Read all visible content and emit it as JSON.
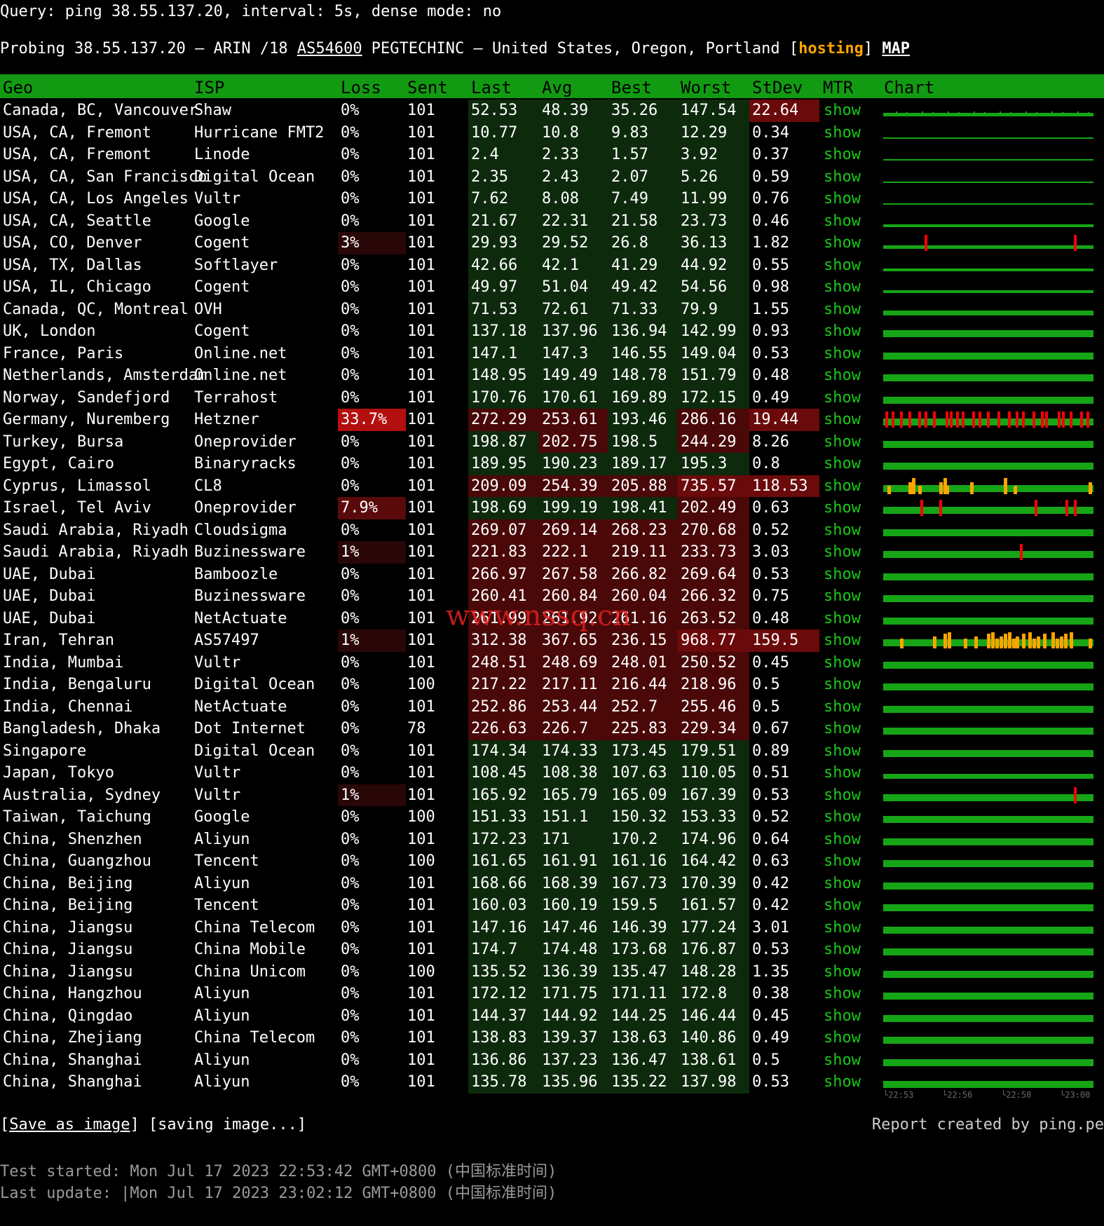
{
  "query": {
    "label": "Query:",
    "text": "ping 38.55.137.20, interval: 5s, dense mode: no"
  },
  "probe": {
    "prefix": "Probing 38.55.137.20 – ARIN /18 ",
    "asn": "AS54600",
    "middle": " PEGTECHINC – United States, Oregon, Portland [",
    "tag": "hosting",
    "close": "] ",
    "map": "MAP"
  },
  "columns": {
    "geo": "Geo",
    "isp": "ISP",
    "loss": "Loss",
    "sent": "Sent",
    "last": "Last",
    "avg": "Avg",
    "best": "Best",
    "worst": "Worst",
    "stdev": "StDev",
    "mtr": "MTR",
    "chart": "Chart"
  },
  "rows": [
    {
      "geo": "Canada, BC, Vancouver",
      "isp": "Shaw",
      "loss": "0%",
      "sent": "101",
      "last": "52.53",
      "avg": "48.39",
      "best": "35.26",
      "worst": "147.54",
      "stdev": "22.64",
      "mtr": "show",
      "chart": "jitter"
    },
    {
      "geo": "USA, CA, Fremont",
      "isp": "Hurricane FMT2",
      "loss": "0%",
      "sent": "101",
      "last": "10.77",
      "avg": "10.8",
      "best": "9.83",
      "worst": "12.29",
      "stdev": "0.34",
      "mtr": "show",
      "chart": "flat-thin"
    },
    {
      "geo": "USA, CA, Fremont",
      "isp": "Linode",
      "loss": "0%",
      "sent": "101",
      "last": "2.4",
      "avg": "2.33",
      "best": "1.57",
      "worst": "3.92",
      "stdev": "0.37",
      "mtr": "show",
      "chart": "flat-thin"
    },
    {
      "geo": "USA, CA, San Francisco",
      "isp": "Digital Ocean",
      "loss": "0%",
      "sent": "101",
      "last": "2.35",
      "avg": "2.43",
      "best": "2.07",
      "worst": "5.26",
      "stdev": "0.59",
      "mtr": "show",
      "chart": "flat-thin"
    },
    {
      "geo": "USA, CA, Los Angeles",
      "isp": "Vultr",
      "loss": "0%",
      "sent": "101",
      "last": "7.62",
      "avg": "8.08",
      "best": "7.49",
      "worst": "11.99",
      "stdev": "0.76",
      "mtr": "show",
      "chart": "flat-thin"
    },
    {
      "geo": "USA, CA, Seattle",
      "isp": "Google",
      "loss": "0%",
      "sent": "101",
      "last": "21.67",
      "avg": "22.31",
      "best": "21.58",
      "worst": "23.73",
      "stdev": "0.46",
      "mtr": "show",
      "chart": "flat-small"
    },
    {
      "geo": "USA, CO, Denver",
      "isp": "Cogent",
      "loss": "3%",
      "sent": "101",
      "last": "29.93",
      "avg": "29.52",
      "best": "26.8",
      "worst": "36.13",
      "stdev": "1.82",
      "mtr": "show",
      "chart": "denver"
    },
    {
      "geo": "USA, TX, Dallas",
      "isp": "Softlayer",
      "loss": "0%",
      "sent": "101",
      "last": "42.66",
      "avg": "42.1",
      "best": "41.29",
      "worst": "44.92",
      "stdev": "0.55",
      "mtr": "show",
      "chart": "flat-small"
    },
    {
      "geo": "USA, IL, Chicago",
      "isp": "Cogent",
      "loss": "0%",
      "sent": "101",
      "last": "49.97",
      "avg": "51.04",
      "best": "49.42",
      "worst": "54.56",
      "stdev": "0.98",
      "mtr": "show",
      "chart": "flat-small"
    },
    {
      "geo": "Canada, QC, Montreal",
      "isp": "OVH",
      "loss": "0%",
      "sent": "101",
      "last": "71.53",
      "avg": "72.61",
      "best": "71.33",
      "worst": "79.9",
      "stdev": "1.55",
      "mtr": "show",
      "chart": "flat-mid"
    },
    {
      "geo": "UK, London",
      "isp": "Cogent",
      "loss": "0%",
      "sent": "101",
      "last": "137.18",
      "avg": "137.96",
      "best": "136.94",
      "worst": "142.99",
      "stdev": "0.93",
      "mtr": "show",
      "chart": "flat"
    },
    {
      "geo": "France, Paris",
      "isp": "Online.net",
      "loss": "0%",
      "sent": "101",
      "last": "147.1",
      "avg": "147.3",
      "best": "146.55",
      "worst": "149.04",
      "stdev": "0.53",
      "mtr": "show",
      "chart": "flat"
    },
    {
      "geo": "Netherlands, Amsterdam",
      "isp": "Online.net",
      "loss": "0%",
      "sent": "101",
      "last": "148.95",
      "avg": "149.49",
      "best": "148.78",
      "worst": "151.79",
      "stdev": "0.48",
      "mtr": "show",
      "chart": "flat"
    },
    {
      "geo": "Norway, Sandefjord",
      "isp": "Terrahost",
      "loss": "0%",
      "sent": "101",
      "last": "170.76",
      "avg": "170.61",
      "best": "169.89",
      "worst": "172.15",
      "stdev": "0.49",
      "mtr": "show",
      "chart": "flat"
    },
    {
      "geo": "Germany, Nuremberg",
      "isp": "Hetzner",
      "loss": "33.7%",
      "sent": "101",
      "last": "272.29",
      "avg": "253.61",
      "best": "193.46",
      "worst": "286.16",
      "stdev": "19.44",
      "mtr": "show",
      "chart": "germany"
    },
    {
      "geo": "Turkey, Bursa",
      "isp": "Oneprovider",
      "loss": "0%",
      "sent": "101",
      "last": "198.87",
      "avg": "202.75",
      "best": "198.5",
      "worst": "244.29",
      "stdev": "8.26",
      "mtr": "show",
      "chart": "flat"
    },
    {
      "geo": "Egypt, Cairo",
      "isp": "Binaryracks",
      "loss": "0%",
      "sent": "101",
      "last": "189.95",
      "avg": "190.23",
      "best": "189.17",
      "worst": "195.3",
      "stdev": "0.8",
      "mtr": "show",
      "chart": "flat"
    },
    {
      "geo": "Cyprus, Limassol",
      "isp": "CL8",
      "loss": "0%",
      "sent": "101",
      "last": "209.09",
      "avg": "254.39",
      "best": "205.88",
      "worst": "735.57",
      "stdev": "118.53",
      "mtr": "show",
      "chart": "cyprus"
    },
    {
      "geo": "Israel, Tel Aviv",
      "isp": "Oneprovider",
      "loss": "7.9%",
      "sent": "101",
      "last": "198.69",
      "avg": "199.19",
      "best": "198.41",
      "worst": "202.49",
      "stdev": "0.63",
      "mtr": "show",
      "chart": "israel"
    },
    {
      "geo": "Saudi Arabia, Riyadh",
      "isp": "Cloudsigma",
      "loss": "0%",
      "sent": "101",
      "last": "269.07",
      "avg": "269.14",
      "best": "268.23",
      "worst": "270.68",
      "stdev": "0.52",
      "mtr": "show",
      "chart": "flat"
    },
    {
      "geo": "Saudi Arabia, Riyadh",
      "isp": "Buzinessware",
      "loss": "1%",
      "sent": "101",
      "last": "221.83",
      "avg": "222.1",
      "best": "219.11",
      "worst": "233.73",
      "stdev": "3.03",
      "mtr": "show",
      "chart": "saudi"
    },
    {
      "geo": "UAE, Dubai",
      "isp": "Bamboozle",
      "loss": "0%",
      "sent": "101",
      "last": "266.97",
      "avg": "267.58",
      "best": "266.82",
      "worst": "269.64",
      "stdev": "0.53",
      "mtr": "show",
      "chart": "flat"
    },
    {
      "geo": "UAE, Dubai",
      "isp": "Buzinessware",
      "loss": "0%",
      "sent": "101",
      "last": "260.41",
      "avg": "260.84",
      "best": "260.04",
      "worst": "266.32",
      "stdev": "0.75",
      "mtr": "show",
      "chart": "flat"
    },
    {
      "geo": "UAE, Dubai",
      "isp": "NetActuate",
      "loss": "0%",
      "sent": "101",
      "last": "261.99",
      "avg": "261.92",
      "best": "261.16",
      "worst": "263.52",
      "stdev": "0.48",
      "mtr": "show",
      "chart": "flat"
    },
    {
      "geo": "Iran, Tehran",
      "isp": "AS57497",
      "loss": "1%",
      "sent": "101",
      "last": "312.38",
      "avg": "367.65",
      "best": "236.15",
      "worst": "968.77",
      "stdev": "159.5",
      "mtr": "show",
      "chart": "iran"
    },
    {
      "geo": "India, Mumbai",
      "isp": "Vultr",
      "loss": "0%",
      "sent": "101",
      "last": "248.51",
      "avg": "248.69",
      "best": "248.01",
      "worst": "250.52",
      "stdev": "0.45",
      "mtr": "show",
      "chart": "flat"
    },
    {
      "geo": "India, Bengaluru",
      "isp": "Digital Ocean",
      "loss": "0%",
      "sent": "100",
      "last": "217.22",
      "avg": "217.11",
      "best": "216.44",
      "worst": "218.96",
      "stdev": "0.5",
      "mtr": "show",
      "chart": "flat"
    },
    {
      "geo": "India, Chennai",
      "isp": "NetActuate",
      "loss": "0%",
      "sent": "101",
      "last": "252.86",
      "avg": "253.44",
      "best": "252.7",
      "worst": "255.46",
      "stdev": "0.5",
      "mtr": "show",
      "chart": "flat"
    },
    {
      "geo": "Bangladesh, Dhaka",
      "isp": "Dot Internet",
      "loss": "0%",
      "sent": "78",
      "last": "226.63",
      "avg": "226.7",
      "best": "225.83",
      "worst": "229.34",
      "stdev": "0.67",
      "mtr": "show",
      "chart": "flat"
    },
    {
      "geo": "Singapore",
      "isp": "Digital Ocean",
      "loss": "0%",
      "sent": "101",
      "last": "174.34",
      "avg": "174.33",
      "best": "173.45",
      "worst": "179.51",
      "stdev": "0.89",
      "mtr": "show",
      "chart": "flat"
    },
    {
      "geo": "Japan, Tokyo",
      "isp": "Vultr",
      "loss": "0%",
      "sent": "101",
      "last": "108.45",
      "avg": "108.38",
      "best": "107.63",
      "worst": "110.05",
      "stdev": "0.51",
      "mtr": "show",
      "chart": "flat-mid"
    },
    {
      "geo": "Australia, Sydney",
      "isp": "Vultr",
      "loss": "1%",
      "sent": "101",
      "last": "165.92",
      "avg": "165.79",
      "best": "165.09",
      "worst": "167.39",
      "stdev": "0.53",
      "mtr": "show",
      "chart": "sydney"
    },
    {
      "geo": "Taiwan, Taichung",
      "isp": "Google",
      "loss": "0%",
      "sent": "100",
      "last": "151.33",
      "avg": "151.1",
      "best": "150.32",
      "worst": "153.33",
      "stdev": "0.52",
      "mtr": "show",
      "chart": "flat"
    },
    {
      "geo": "China, Shenzhen",
      "isp": "Aliyun",
      "loss": "0%",
      "sent": "101",
      "last": "172.23",
      "avg": "171",
      "best": "170.2",
      "worst": "174.96",
      "stdev": "0.64",
      "mtr": "show",
      "chart": "flat"
    },
    {
      "geo": "China, Guangzhou",
      "isp": "Tencent",
      "loss": "0%",
      "sent": "100",
      "last": "161.65",
      "avg": "161.91",
      "best": "161.16",
      "worst": "164.42",
      "stdev": "0.63",
      "mtr": "show",
      "chart": "flat"
    },
    {
      "geo": "China, Beijing",
      "isp": "Aliyun",
      "loss": "0%",
      "sent": "101",
      "last": "168.66",
      "avg": "168.39",
      "best": "167.73",
      "worst": "170.39",
      "stdev": "0.42",
      "mtr": "show",
      "chart": "flat"
    },
    {
      "geo": "China, Beijing",
      "isp": "Tencent",
      "loss": "0%",
      "sent": "101",
      "last": "160.03",
      "avg": "160.19",
      "best": "159.5",
      "worst": "161.57",
      "stdev": "0.42",
      "mtr": "show",
      "chart": "flat"
    },
    {
      "geo": "China, Jiangsu",
      "isp": "China Telecom",
      "loss": "0%",
      "sent": "101",
      "last": "147.16",
      "avg": "147.46",
      "best": "146.39",
      "worst": "177.24",
      "stdev": "3.01",
      "mtr": "show",
      "chart": "flat"
    },
    {
      "geo": "China, Jiangsu",
      "isp": "China Mobile",
      "loss": "0%",
      "sent": "101",
      "last": "174.7",
      "avg": "174.48",
      "best": "173.68",
      "worst": "176.87",
      "stdev": "0.53",
      "mtr": "show",
      "chart": "flat"
    },
    {
      "geo": "China, Jiangsu",
      "isp": "China Unicom",
      "loss": "0%",
      "sent": "100",
      "last": "135.52",
      "avg": "136.39",
      "best": "135.47",
      "worst": "148.28",
      "stdev": "1.35",
      "mtr": "show",
      "chart": "flat"
    },
    {
      "geo": "China, Hangzhou",
      "isp": "Aliyun",
      "loss": "0%",
      "sent": "101",
      "last": "172.12",
      "avg": "171.75",
      "best": "171.11",
      "worst": "172.8",
      "stdev": "0.38",
      "mtr": "show",
      "chart": "flat"
    },
    {
      "geo": "China, Qingdao",
      "isp": "Aliyun",
      "loss": "0%",
      "sent": "101",
      "last": "144.37",
      "avg": "144.92",
      "best": "144.25",
      "worst": "146.44",
      "stdev": "0.45",
      "mtr": "show",
      "chart": "flat"
    },
    {
      "geo": "China, Zhejiang",
      "isp": "China Telecom",
      "loss": "0%",
      "sent": "101",
      "last": "138.83",
      "avg": "139.37",
      "best": "138.63",
      "worst": "140.86",
      "stdev": "0.49",
      "mtr": "show",
      "chart": "flat"
    },
    {
      "geo": "China, Shanghai",
      "isp": "Aliyun",
      "loss": "0%",
      "sent": "101",
      "last": "136.86",
      "avg": "137.23",
      "best": "136.47",
      "worst": "138.61",
      "stdev": "0.5",
      "mtr": "show",
      "chart": "flat"
    },
    {
      "geo": "China, Shanghai",
      "isp": "Aliyun",
      "loss": "0%",
      "sent": "101",
      "last": "135.78",
      "avg": "135.96",
      "best": "135.22",
      "worst": "137.98",
      "stdev": "0.53",
      "mtr": "show",
      "chart": "flat"
    }
  ],
  "chart_ticks": [
    "22:53",
    "22:56",
    "22:58",
    "23:00"
  ],
  "footer": {
    "save_open": "[",
    "save_label": "Save as image",
    "save_close": "] [saving image...]",
    "credit": "Report created by ping.pe",
    "started": "Test started: Mon Jul 17 2023 22:53:42 GMT+0800 (中国标准时间)",
    "updated": "Last update: |Mon Jul 17 2023 23:02:12 GMT+0800 (中国标准时间)"
  },
  "watermark": "www.nssq.cn",
  "colors": {
    "header_bg": "#129b12",
    "row_green": "#0d2a0d",
    "row_green_dark": "#0a1f0a",
    "latency_red": "#4a0808",
    "high_red": "#6b0a0a",
    "loss_bright": "#b30f0f",
    "loss_dim": "#2a0707",
    "chart_green": "#16a516",
    "loss_mark": "#ff0000",
    "spike_mark": "#ffa500",
    "mtr_link": "#19c919",
    "hosting_tag": "#ffa500"
  }
}
